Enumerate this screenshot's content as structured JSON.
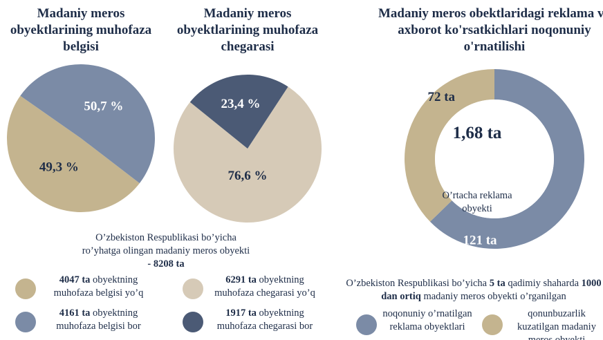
{
  "chart_data": [
    {
      "type": "pie",
      "title": "Madaniy meros obyektlarining muhofaza belgisi",
      "categories": [
        "obyektning muhofaza belgisi yo’q",
        "obyektning muhofaza belgisi bor"
      ],
      "category_counts": [
        "4047 ta",
        "4161 ta"
      ],
      "values": [
        49.3,
        50.7
      ],
      "value_labels": [
        "49,3 %",
        "50,7 %"
      ],
      "colors": [
        "#c4b48f",
        "#7b8ba6"
      ]
    },
    {
      "type": "pie",
      "title": "Madaniy meros obyektlarining muhofaza chegarasi",
      "categories": [
        "obyektning muhofaza chegarasi yo’q",
        "obyektning muhofaza chegarasi bor"
      ],
      "category_counts": [
        "6291 ta",
        "1917 ta"
      ],
      "values": [
        76.6,
        23.4
      ],
      "value_labels": [
        "76,6 %",
        "23,4 %"
      ],
      "colors": [
        "#d6cab7",
        "#4b5a75"
      ]
    },
    {
      "type": "donut",
      "title": "Madaniy meros obektlaridagi reklama va axborot ko'rsatkichlari noqonuniy o'rnatilishi",
      "categories": [
        "noqonuniy o’rnatilgan reklama obyektlari",
        "qonunbuzarlik kuzatilgan madaniy meros obyekti"
      ],
      "values": [
        121,
        72
      ],
      "value_labels": [
        "121 ta",
        "72 ta"
      ],
      "colors": [
        "#7b8ba6",
        "#c4b48f"
      ],
      "center_label": "1,68 ta",
      "center_caption": "O’rtacha reklama obyekti"
    }
  ],
  "summary_left": {
    "text": "O’zbekiston Respublikasi bo’yicha ro’yhatga olingan madaniy meros obyekti",
    "total": "- 8208 ta"
  },
  "summary_right": [
    "O’zbekiston Respublikasi bo’yicha",
    "5 ta",
    "qadimiy shaharda",
    "1000 dan ortiq",
    "madaniy meros obyekti o’rganilgan"
  ]
}
